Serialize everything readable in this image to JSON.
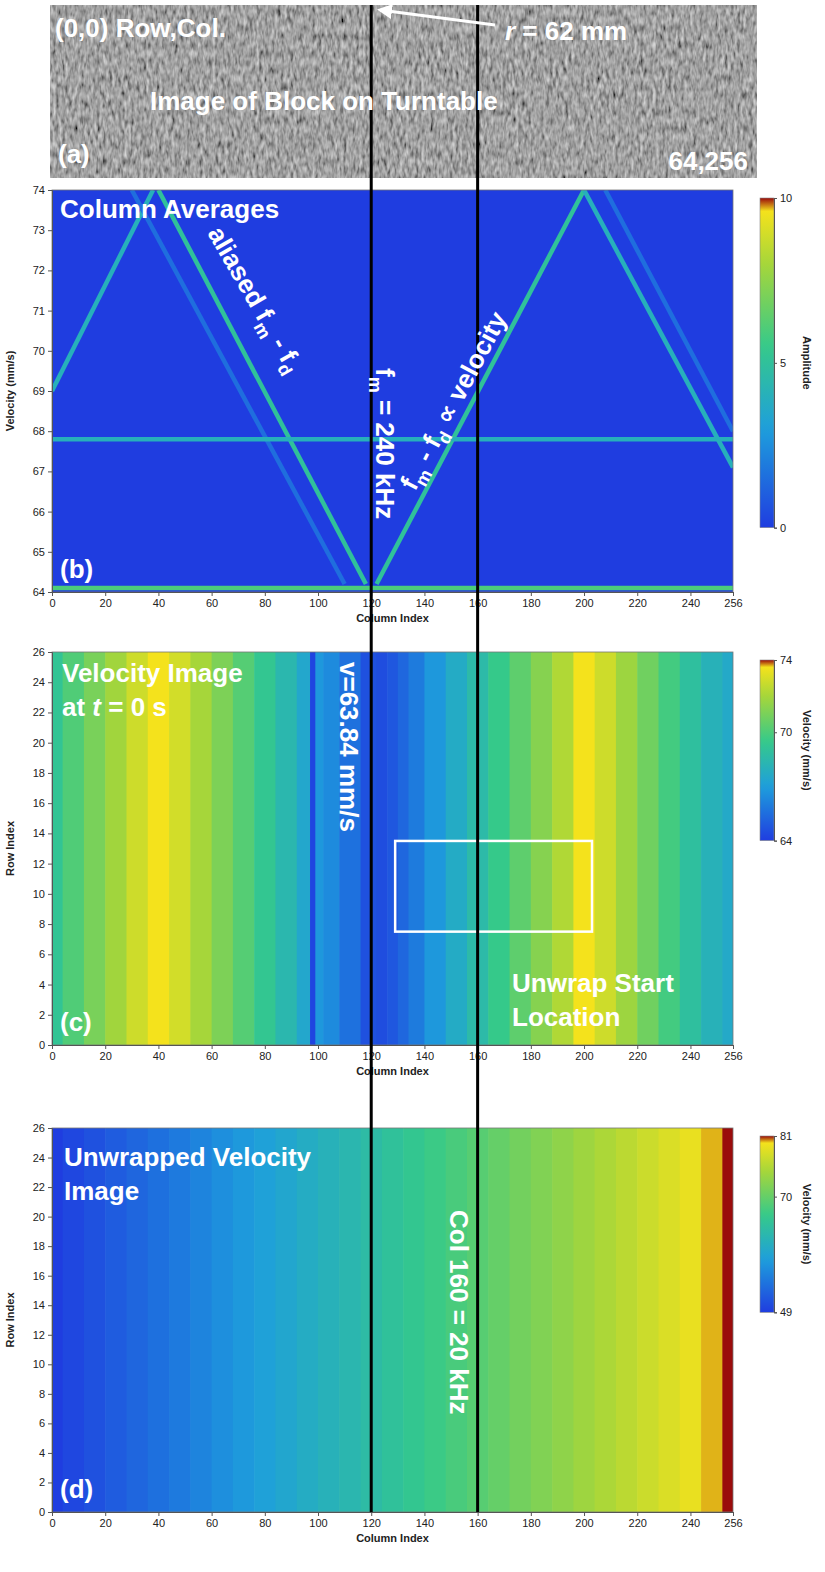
{
  "chart_data": [
    {
      "type": "image",
      "panel_label": "(a)",
      "annotations": [
        {
          "lines": [
            [
              {
                "t": "(0,0) Row,Col."
              }
            ]
          ]
        },
        {
          "lines": [
            [
              {
                "t": "r",
                "italic": true
              },
              {
                "t": " = 62 mm"
              }
            ]
          ]
        },
        {
          "lines": [
            [
              {
                "t": "Image of Block on Turntable"
              }
            ]
          ]
        },
        {
          "lines": [
            [
              {
                "t": "64,256"
              }
            ]
          ]
        }
      ]
    },
    {
      "type": "heatmap",
      "panel_label": "(b)",
      "x_label": "Column Index",
      "y_label": "Velocity (mm/s)",
      "xlim": [
        0,
        256
      ],
      "xticks": [
        0,
        20,
        40,
        60,
        80,
        100,
        120,
        140,
        160,
        180,
        200,
        220,
        240,
        256
      ],
      "ylim": [
        64,
        74
      ],
      "yticks": [
        64,
        65,
        66,
        67,
        68,
        69,
        70,
        71,
        72,
        73,
        74
      ],
      "colorbar": {
        "label": "Amplitude",
        "range": [
          0,
          10
        ],
        "ticks": [
          0,
          5,
          10
        ]
      },
      "background_amplitude": 0,
      "ridges": [
        {
          "x": [
            0,
            38
          ],
          "y": [
            69,
            74
          ],
          "amplitude": 4
        },
        {
          "x": [
            40,
            118
          ],
          "y": [
            74,
            64.2
          ],
          "amplitude": 5
        },
        {
          "x": [
            122,
            200
          ],
          "y": [
            64.2,
            74
          ],
          "amplitude": 5
        },
        {
          "x": [
            200,
            256
          ],
          "y": [
            74,
            67.1
          ],
          "amplitude": 4
        },
        {
          "x": [
            30,
            110
          ],
          "y": [
            74,
            64.2
          ],
          "amplitude": 1.5
        },
        {
          "x": [
            208,
            256
          ],
          "y": [
            74,
            68
          ],
          "amplitude": 1.5
        },
        {
          "x": [
            0,
            256
          ],
          "y": [
            67.8,
            67.8
          ],
          "amplitude": 4
        },
        {
          "x": [
            0,
            256
          ],
          "y": [
            64.1,
            64.1
          ],
          "amplitude": 6
        }
      ],
      "vlines": [
        120,
        160
      ],
      "annotations": [
        {
          "lines": [
            [
              {
                "t": "Column Averages"
              }
            ]
          ]
        },
        {
          "lines": [
            [
              {
                "t": "aliased f"
              },
              {
                "t": "m",
                "sub": true
              },
              {
                "t": " - f"
              },
              {
                "t": "d",
                "sub": true
              }
            ]
          ]
        },
        {
          "lines": [
            [
              {
                "t": "f"
              },
              {
                "t": "m",
                "sub": true
              },
              {
                "t": " = 240 kHz"
              }
            ]
          ]
        },
        {
          "lines": [
            [
              {
                "t": "f"
              },
              {
                "t": "m",
                "sub": true
              },
              {
                "t": " - f"
              },
              {
                "t": "d",
                "sub": true
              },
              {
                "t": " ∝ velocity"
              }
            ]
          ]
        }
      ]
    },
    {
      "type": "heatmap",
      "panel_label": "(c)",
      "x_label": "Column Index",
      "y_label": "Row Index",
      "xlim": [
        0,
        256
      ],
      "xticks": [
        0,
        20,
        40,
        60,
        80,
        100,
        120,
        140,
        160,
        180,
        200,
        220,
        240,
        256
      ],
      "ylim": [
        0,
        26
      ],
      "yticks": [
        0,
        2,
        4,
        6,
        8,
        10,
        12,
        14,
        16,
        18,
        20,
        22,
        24,
        26
      ],
      "colorbar": {
        "label": "Velocity (mm/s)",
        "range": [
          64,
          74
        ],
        "ticks": [
          64,
          70,
          74
        ]
      },
      "columns": [
        0,
        8,
        16,
        24,
        32,
        40,
        48,
        56,
        64,
        72,
        80,
        88,
        96,
        98,
        100,
        104,
        112,
        120,
        124,
        128,
        132,
        136,
        144,
        152,
        160,
        168,
        176,
        184,
        192,
        200,
        208,
        216,
        224,
        232,
        240,
        248,
        256
      ],
      "velocity": [
        69.2,
        70.1,
        71.0,
        71.9,
        72.8,
        73.6,
        72.9,
        72.0,
        71.1,
        70.2,
        69.3,
        68.4,
        67.5,
        64.2,
        66.8,
        66.4,
        65.6,
        64.6,
        64.5,
        64.8,
        65.3,
        65.9,
        66.8,
        67.7,
        68.6,
        69.5,
        70.4,
        71.3,
        72.2,
        73.6,
        72.8,
        71.8,
        70.8,
        69.8,
        68.9,
        68.1,
        67.6
      ],
      "box": {
        "x": [
          129,
          203
        ],
        "y": [
          7.5,
          13.5
        ]
      },
      "annotations": [
        {
          "lines": [
            [
              {
                "t": "Velocity Image"
              }
            ],
            [
              {
                "t": "at "
              },
              {
                "t": "t",
                "italic": true
              },
              {
                "t": " = 0 s"
              }
            ]
          ]
        },
        {
          "lines": [
            [
              {
                "t": "v=63.84 mm/s"
              }
            ]
          ]
        },
        {
          "lines": [
            [
              {
                "t": "Unwrap Start"
              }
            ],
            [
              {
                "t": "Location"
              }
            ]
          ]
        }
      ]
    },
    {
      "type": "heatmap",
      "panel_label": "(d)",
      "x_label": "Column Index",
      "y_label": "Row Index",
      "xlim": [
        0,
        256
      ],
      "xticks": [
        0,
        20,
        40,
        60,
        80,
        100,
        120,
        140,
        160,
        180,
        200,
        220,
        240,
        256
      ],
      "ylim": [
        0,
        26
      ],
      "yticks": [
        0,
        2,
        4,
        6,
        8,
        10,
        12,
        14,
        16,
        18,
        20,
        22,
        24,
        26
      ],
      "colorbar": {
        "label": "Velocity (mm/s)",
        "range": [
          49,
          81
        ],
        "ticks": [
          49,
          70,
          81
        ]
      },
      "columns": [
        0,
        8,
        16,
        24,
        32,
        40,
        48,
        56,
        64,
        72,
        80,
        88,
        96,
        104,
        112,
        120,
        128,
        136,
        144,
        152,
        160,
        168,
        176,
        184,
        192,
        200,
        208,
        216,
        224,
        232,
        240,
        248,
        256
      ],
      "velocity": [
        49,
        50,
        51,
        52,
        53,
        54,
        55,
        56,
        57,
        58,
        59,
        60,
        61,
        62,
        63,
        64,
        65,
        66,
        67,
        68,
        69,
        70,
        71,
        72,
        73,
        74,
        75,
        76,
        77,
        78,
        79,
        80,
        81
      ],
      "annotations": [
        {
          "lines": [
            [
              {
                "t": "Unwrapped Velocity"
              }
            ],
            [
              {
                "t": "Image"
              }
            ]
          ]
        },
        {
          "lines": [
            [
              {
                "t": "Col 160 = 20 kHz"
              }
            ]
          ]
        }
      ]
    }
  ]
}
